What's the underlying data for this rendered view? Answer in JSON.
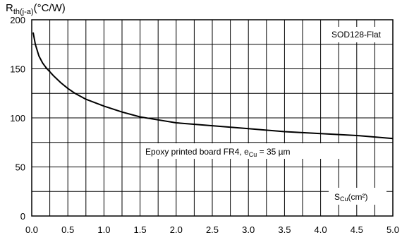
{
  "chart_data": {
    "type": "line",
    "ylabel": {
      "main": "R",
      "subscript": "th(j-a)",
      "unit": "(°C/W)"
    },
    "xlabel": {
      "main": "S",
      "subscript": "Cu",
      "unit": "(cm²)"
    },
    "package_label": "SOD128-Flat",
    "annotation": {
      "prefix": "Epoxy printed board FR4, e",
      "subscript": "Cu",
      "suffix": " = 35 µm"
    },
    "xlim": [
      0,
      5
    ],
    "ylim": [
      0,
      200
    ],
    "x_ticks": [
      "0.0",
      "0.5",
      "1.0",
      "1.5",
      "2.0",
      "2.5",
      "3.0",
      "3.5",
      "4.0",
      "4.5",
      "5.0"
    ],
    "y_ticks": [
      "0",
      "50",
      "100",
      "150",
      "200"
    ],
    "grid": true,
    "series": [
      {
        "x": [
          0.02,
          0.05,
          0.1,
          0.15,
          0.2,
          0.3,
          0.4,
          0.5,
          0.6,
          0.75,
          1.0,
          1.25,
          1.5,
          1.75,
          2.0,
          2.5,
          3.0,
          3.5,
          4.0,
          4.5,
          5.0
        ],
        "y": [
          187,
          175,
          163,
          156,
          151,
          143,
          136,
          130,
          125,
          119,
          112,
          106,
          101,
          98,
          95,
          92,
          89,
          86,
          84,
          82,
          79
        ]
      }
    ]
  }
}
